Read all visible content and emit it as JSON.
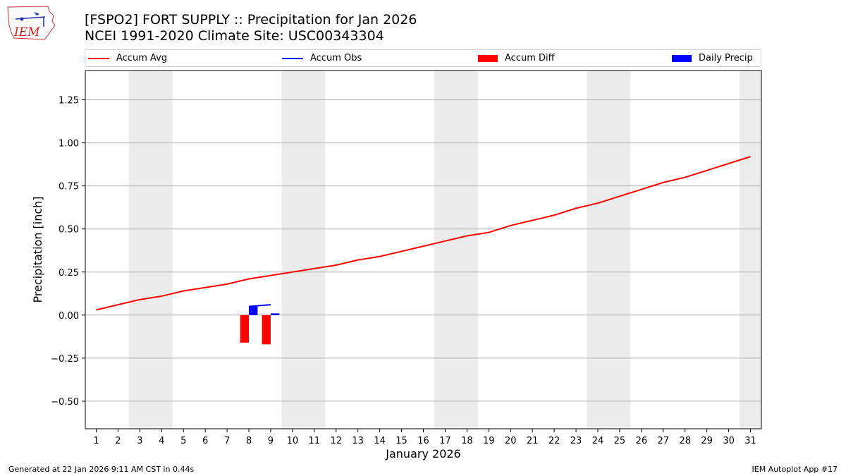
{
  "header": {
    "title_line1": "[FSPO2] FORT SUPPLY :: Precipitation for Jan 2026",
    "title_line2": "NCEI 1991-2020 Climate Site: USC00343304"
  },
  "logo": {
    "text": "IEM"
  },
  "footer": {
    "left": "Generated at 22 Jan 2026 9:11 AM CST in 0.44s",
    "right": "IEM Autoplot App #17"
  },
  "colors": {
    "avg": "#ff0000",
    "obs": "#0000ff",
    "diff": "#ff0000",
    "daily": "#0000ff",
    "weekend_band": "#ececec",
    "grid": "#b0b0b0"
  },
  "legend": [
    {
      "label": "Accum Avg",
      "kind": "line",
      "color": "#ff0000"
    },
    {
      "label": "Accum Obs",
      "kind": "line",
      "color": "#0000ff"
    },
    {
      "label": "Accum Diff",
      "kind": "patch",
      "color": "#ff0000"
    },
    {
      "label": "Daily Precip",
      "kind": "patch",
      "color": "#0000ff"
    }
  ],
  "chart_data": {
    "type": "line",
    "title": "[FSPO2] FORT SUPPLY :: Precipitation for Jan 2026",
    "subtitle": "NCEI 1991-2020 Climate Site: USC00343304",
    "xlabel": "January 2026",
    "ylabel": "Precipitation [inch]",
    "xlim": [
      0.5,
      31.5
    ],
    "ylim": [
      -0.66,
      1.42
    ],
    "grid": true,
    "x": [
      1,
      2,
      3,
      4,
      5,
      6,
      7,
      8,
      9,
      10,
      11,
      12,
      13,
      14,
      15,
      16,
      17,
      18,
      19,
      20,
      21,
      22,
      23,
      24,
      25,
      26,
      27,
      28,
      29,
      30,
      31
    ],
    "x_tick_labels": [
      "1",
      "2",
      "3",
      "4",
      "5",
      "6",
      "7",
      "8",
      "9",
      "10",
      "11",
      "12",
      "13",
      "14",
      "15",
      "16",
      "17",
      "18",
      "19",
      "20",
      "21",
      "22",
      "23",
      "24",
      "25",
      "26",
      "27",
      "28",
      "29",
      "30",
      "31"
    ],
    "y_ticks": [
      -0.5,
      -0.25,
      0.0,
      0.25,
      0.5,
      0.75,
      1.0,
      1.25
    ],
    "y_tick_labels": [
      "−0.50",
      "−0.25",
      "0.00",
      "0.25",
      "0.50",
      "0.75",
      "1.00",
      "1.25"
    ],
    "weekend_spans": [
      [
        2.5,
        4.5
      ],
      [
        9.5,
        11.5
      ],
      [
        16.5,
        18.5
      ],
      [
        23.5,
        25.5
      ],
      [
        30.5,
        31.5
      ]
    ],
    "series": [
      {
        "name": "Accum Avg",
        "kind": "line",
        "x": [
          1,
          2,
          3,
          4,
          5,
          6,
          7,
          8,
          9,
          10,
          11,
          12,
          13,
          14,
          15,
          16,
          17,
          18,
          19,
          20,
          21,
          22,
          23,
          24,
          25,
          26,
          27,
          28,
          29,
          30,
          31
        ],
        "values": [
          0.03,
          0.06,
          0.09,
          0.11,
          0.14,
          0.16,
          0.18,
          0.21,
          0.23,
          0.25,
          0.27,
          0.29,
          0.32,
          0.34,
          0.37,
          0.4,
          0.43,
          0.46,
          0.48,
          0.52,
          0.55,
          0.58,
          0.62,
          0.65,
          0.69,
          0.73,
          0.77,
          0.8,
          0.84,
          0.88,
          0.92
        ]
      },
      {
        "name": "Accum Obs",
        "kind": "line",
        "x": [
          8,
          9
        ],
        "values": [
          0.05,
          0.06
        ]
      },
      {
        "name": "Accum Diff",
        "kind": "bar",
        "x": [
          8,
          9
        ],
        "values": [
          -0.16,
          -0.17
        ]
      },
      {
        "name": "Daily Precip",
        "kind": "bar",
        "x": [
          8,
          9
        ],
        "values": [
          0.05,
          0.01
        ]
      }
    ]
  }
}
